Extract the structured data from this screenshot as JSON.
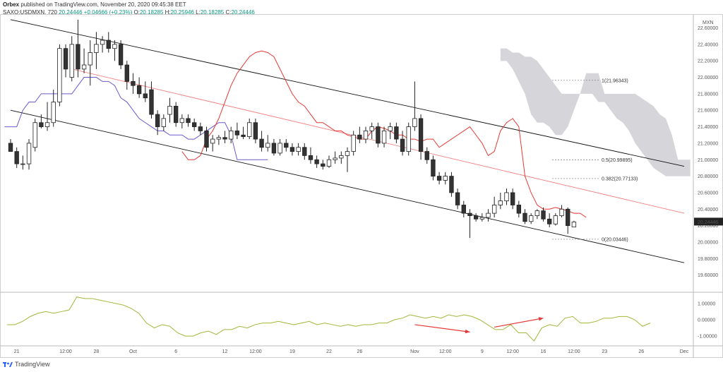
{
  "header": {
    "publisher_name": "Orbex",
    "published_text": "published on TradingView.com, November 20, 2020 09:45:38 EET",
    "symbol": "SAXO:USDMXN, 720",
    "last": "20.24446",
    "change": "+0.04666 (+0.23%)",
    "o_label": "O:",
    "o_value": "20.18285",
    "h_label": "H:",
    "h_value": "20.25946",
    "l_label": "L:",
    "l_value": "20.18285",
    "c_label": "C:",
    "c_value": "20.24446"
  },
  "footer": {
    "brand": "TradingView",
    "logo_icon": "tradingview-logo-icon"
  },
  "colors": {
    "up_fill": "#ffffff",
    "down_fill": "#333333",
    "candle_line": "#222222",
    "tenkan": "#e53935",
    "kijun": "#6a5acd",
    "cloud": "#cfcfd3",
    "oscillator": "#a5b53b",
    "arrow": "#e53935",
    "channel": "#111111",
    "midline": "#f08080"
  },
  "chart_data": {
    "type": "candlestick",
    "symbol": "SAXO:USDMXN",
    "interval": "720",
    "currency_badge": "MXN",
    "price_axis": {
      "ylim": [
        19.4,
        22.75
      ],
      "ticks": [
        "22.60000",
        "22.40000",
        "22.20000",
        "22.00000",
        "21.80000",
        "21.60000",
        "21.40000",
        "21.20000",
        "21.00000",
        "20.80000",
        "20.60000",
        "20.40000",
        "20.20000",
        "20.00000",
        "19.80000",
        "19.60000"
      ],
      "tick_values": [
        22.6,
        22.4,
        22.2,
        22.0,
        21.8,
        21.6,
        21.4,
        21.2,
        21.0,
        20.8,
        20.6,
        20.4,
        20.2,
        20.0,
        19.8,
        19.6
      ],
      "last_price_label": "20.24446",
      "last_price": 20.24446
    },
    "x_axis": {
      "labels": [
        "21",
        "12:00",
        "28",
        "Oct",
        "6",
        "12",
        "12:00",
        "19",
        "22",
        "26",
        "Nov",
        "12:00",
        "9",
        "12:00",
        "16",
        "12:00",
        "23",
        "26",
        "Dec"
      ],
      "label_bars": [
        2,
        10,
        15,
        21,
        28,
        36,
        41,
        47,
        53,
        58,
        67,
        72,
        78,
        83,
        88,
        93,
        98,
        104,
        111
      ],
      "bar_count": 113
    },
    "candles": [
      [
        21.2,
        21.25,
        21.1,
        21.1
      ],
      [
        21.1,
        21.15,
        20.9,
        20.95
      ],
      [
        20.95,
        21.05,
        20.88,
        20.95
      ],
      [
        20.95,
        21.25,
        20.88,
        21.2
      ],
      [
        21.15,
        21.5,
        21.1,
        21.45
      ],
      [
        21.45,
        21.55,
        21.38,
        21.4
      ],
      [
        21.4,
        21.7,
        21.35,
        21.45
      ],
      [
        21.45,
        21.85,
        21.4,
        21.7
      ],
      [
        21.7,
        22.4,
        21.65,
        22.35
      ],
      [
        22.35,
        22.4,
        22.0,
        22.1
      ],
      [
        22.0,
        22.5,
        21.95,
        22.4
      ],
      [
        22.4,
        22.7,
        22.0,
        22.1
      ],
      [
        22.1,
        22.35,
        22.05,
        22.15
      ],
      [
        22.15,
        22.45,
        21.9,
        22.3
      ],
      [
        22.3,
        22.55,
        22.1,
        22.4
      ],
      [
        22.4,
        22.5,
        22.3,
        22.45
      ],
      [
        22.45,
        22.55,
        22.3,
        22.35
      ],
      [
        22.35,
        22.45,
        22.2,
        22.4
      ],
      [
        22.4,
        22.45,
        22.1,
        22.15
      ],
      [
        22.15,
        22.2,
        21.85,
        21.95
      ],
      [
        21.95,
        22.05,
        21.8,
        21.9
      ],
      [
        21.9,
        22.0,
        21.75,
        21.8
      ],
      [
        21.8,
        21.95,
        21.7,
        21.75
      ],
      [
        21.85,
        21.95,
        21.5,
        21.55
      ],
      [
        21.55,
        21.6,
        21.3,
        21.4
      ],
      [
        21.4,
        21.55,
        21.35,
        21.5
      ],
      [
        21.55,
        21.75,
        21.45,
        21.65
      ],
      [
        21.65,
        21.7,
        21.4,
        21.45
      ],
      [
        21.45,
        21.55,
        21.38,
        21.5
      ],
      [
        21.5,
        21.55,
        21.4,
        21.45
      ],
      [
        21.45,
        21.5,
        21.35,
        21.4
      ],
      [
        21.4,
        21.45,
        21.3,
        21.35
      ],
      [
        21.35,
        21.4,
        21.1,
        21.15
      ],
      [
        21.2,
        21.3,
        21.1,
        21.25
      ],
      [
        21.25,
        21.3,
        21.18,
        21.27
      ],
      [
        21.27,
        21.35,
        21.2,
        21.25
      ],
      [
        21.25,
        21.4,
        21.2,
        21.35
      ],
      [
        21.35,
        21.45,
        21.25,
        21.3
      ],
      [
        21.3,
        21.4,
        21.25,
        21.28
      ],
      [
        21.28,
        21.5,
        21.25,
        21.45
      ],
      [
        21.45,
        21.5,
        21.2,
        21.25
      ],
      [
        21.25,
        21.35,
        21.1,
        21.15
      ],
      [
        21.15,
        21.3,
        21.1,
        21.2
      ],
      [
        21.2,
        21.25,
        21.05,
        21.08
      ],
      [
        21.08,
        21.25,
        21.05,
        21.2
      ],
      [
        21.2,
        21.25,
        21.1,
        21.15
      ],
      [
        21.15,
        21.2,
        21.05,
        21.1
      ],
      [
        21.1,
        21.2,
        21.05,
        21.15
      ],
      [
        21.15,
        21.2,
        21.0,
        21.05
      ],
      [
        21.05,
        21.15,
        20.95,
        21.0
      ],
      [
        21.0,
        21.05,
        20.9,
        20.95
      ],
      [
        20.95,
        21.0,
        20.88,
        20.92
      ],
      [
        20.92,
        21.05,
        20.9,
        21.0
      ],
      [
        21.0,
        21.1,
        20.95,
        21.02
      ],
      [
        21.02,
        21.1,
        20.95,
        21.05
      ],
      [
        21.05,
        21.15,
        20.85,
        21.1
      ],
      [
        21.1,
        21.35,
        21.05,
        21.3
      ],
      [
        21.3,
        21.4,
        21.2,
        21.25
      ],
      [
        21.25,
        21.4,
        21.2,
        21.35
      ],
      [
        21.35,
        21.45,
        21.25,
        21.4
      ],
      [
        21.4,
        21.45,
        21.15,
        21.2
      ],
      [
        21.2,
        21.4,
        21.15,
        21.35
      ],
      [
        21.35,
        21.45,
        21.25,
        21.4
      ],
      [
        21.4,
        21.45,
        21.2,
        21.25
      ],
      [
        21.25,
        21.35,
        21.05,
        21.1
      ],
      [
        21.1,
        21.45,
        21.05,
        21.4
      ],
      [
        21.4,
        21.95,
        21.35,
        21.5
      ],
      [
        21.5,
        21.55,
        21.0,
        21.1
      ],
      [
        21.1,
        21.15,
        20.95,
        21.0
      ],
      [
        21.0,
        21.05,
        20.75,
        20.8
      ],
      [
        20.8,
        20.85,
        20.7,
        20.75
      ],
      [
        20.75,
        20.85,
        20.7,
        20.8
      ],
      [
        20.8,
        20.85,
        20.55,
        20.6
      ],
      [
        20.6,
        20.65,
        20.4,
        20.45
      ],
      [
        20.45,
        20.5,
        20.3,
        20.35
      ],
      [
        20.35,
        20.4,
        20.05,
        20.32
      ],
      [
        20.32,
        20.35,
        20.25,
        20.28
      ],
      [
        20.28,
        20.35,
        20.25,
        20.3
      ],
      [
        20.3,
        20.4,
        20.25,
        20.35
      ],
      [
        20.35,
        20.55,
        20.3,
        20.45
      ],
      [
        20.45,
        20.6,
        20.4,
        20.5
      ],
      [
        20.5,
        20.65,
        20.45,
        20.6
      ],
      [
        20.6,
        20.65,
        20.4,
        20.45
      ],
      [
        20.45,
        20.5,
        20.3,
        20.35
      ],
      [
        20.35,
        20.4,
        20.22,
        20.25
      ],
      [
        20.25,
        20.35,
        20.22,
        20.32
      ],
      [
        20.32,
        20.4,
        20.28,
        20.38
      ],
      [
        20.38,
        20.42,
        20.25,
        20.28
      ],
      [
        20.28,
        20.35,
        20.18,
        20.22
      ],
      [
        20.22,
        20.35,
        20.2,
        20.32
      ],
      [
        20.32,
        20.45,
        20.3,
        20.4
      ],
      [
        20.4,
        20.42,
        20.1,
        20.2
      ],
      [
        20.18285,
        20.25946,
        20.18285,
        20.24446
      ]
    ],
    "tenkan": [
      21.1,
      21.0,
      21.0,
      21.05,
      21.25,
      21.35,
      21.5,
      21.7,
      21.9,
      22.05,
      22.15,
      22.25,
      22.3,
      22.32,
      22.3,
      22.25,
      22.1,
      21.95,
      21.8,
      21.7,
      21.65,
      21.55,
      21.45,
      21.45,
      21.4,
      21.35,
      21.35,
      21.3,
      21.28,
      21.25,
      21.25,
      21.35,
      21.4,
      21.38,
      21.35,
      21.3,
      21.3,
      21.25,
      21.25,
      21.22,
      21.25,
      21.25,
      21.15,
      21.2,
      21.25,
      21.3,
      21.35,
      21.4,
      21.3,
      21.2,
      21.05,
      21.1,
      21.35,
      21.45,
      21.5,
      21.4,
      20.8,
      20.6,
      20.45,
      20.4,
      20.4,
      20.42,
      20.4,
      20.38,
      20.35,
      20.35,
      20.3
    ],
    "kijun": [
      21.4,
      21.4,
      21.4,
      21.6,
      21.7,
      21.7,
      21.8,
      21.8,
      21.8,
      21.8,
      21.8,
      21.8,
      21.9,
      22.0,
      22.0,
      22.0,
      21.95,
      21.95,
      21.9,
      21.75,
      21.7,
      21.6,
      21.5,
      21.45,
      21.4,
      21.35,
      21.35,
      21.3,
      21.3,
      21.3,
      21.25,
      21.25,
      21.3,
      21.35,
      21.4,
      21.45,
      21.45,
      21.3,
      21.0,
      21.0,
      21.0,
      21.0,
      21.0,
      21.0
    ],
    "cloud": {
      "label": "Ichimoku cloud",
      "upper": [
        22.35,
        22.35,
        22.3,
        22.3,
        22.25,
        22.25,
        22.2,
        22.1,
        22.0,
        21.9,
        21.8,
        21.8,
        21.8,
        21.8,
        22.05,
        22.05,
        22.05,
        21.8,
        21.8,
        21.8,
        21.8,
        21.8,
        21.8,
        21.75,
        21.7,
        21.65,
        21.55,
        21.5,
        21.3,
        21.0,
        21.0,
        21.0
      ],
      "lower": [
        22.2,
        22.2,
        22.1,
        21.95,
        21.8,
        21.55,
        21.45,
        21.45,
        21.4,
        21.3,
        21.3,
        21.4,
        21.6,
        21.8,
        21.8,
        21.8,
        21.7,
        21.7,
        21.6,
        21.5,
        21.45,
        21.35,
        21.2,
        21.1,
        21.0,
        20.9,
        20.85,
        20.8,
        20.8,
        20.8,
        20.8,
        20.8
      ]
    },
    "channel": {
      "upper": [
        [
          22.7,
          1
        ],
        [
          20.92,
          111
        ]
      ],
      "lower": [
        [
          21.6,
          1
        ],
        [
          19.75,
          111
        ]
      ],
      "midline": [
        [
          22.1,
          11
        ],
        [
          20.35,
          111
        ]
      ]
    },
    "fibonacci": [
      {
        "level": 1,
        "label": "1(21.96343)",
        "price": 21.96343
      },
      {
        "level": 0.5,
        "label": "0.5(20.99895)",
        "price": 20.99895
      },
      {
        "level": 0.382,
        "label": "0.382(20.77133)",
        "price": 20.77133
      },
      {
        "level": 0,
        "label": "0(20.03446)",
        "price": 20.03446
      }
    ],
    "oscillator": {
      "ylim": [
        -1.6,
        1.6
      ],
      "ticks": [
        "1.00000",
        "0.00000",
        "-1.00000"
      ],
      "tick_values": [
        1,
        0,
        -1
      ],
      "values": [
        -0.3,
        -0.3,
        -0.1,
        0.2,
        0.4,
        0.5,
        0.4,
        0.5,
        0.6,
        1.4,
        1.3,
        1.3,
        1.2,
        1.1,
        1.0,
        0.9,
        0.7,
        0.4,
        -0.2,
        -0.5,
        -0.3,
        -0.4,
        -0.8,
        -1.0,
        -1.0,
        -0.8,
        -0.7,
        -0.9,
        -0.6,
        -0.6,
        -0.4,
        -0.5,
        -0.3,
        -0.2,
        -0.2,
        -0.1,
        -0.2,
        -0.3,
        -0.2,
        -0.1,
        -0.3,
        -0.2,
        -0.3,
        -0.4,
        -0.3,
        -0.4,
        -0.3,
        -0.3,
        -0.2,
        -0.2,
        0.0,
        0.1,
        0.3,
        0.2,
        0.1,
        0.2,
        0.1,
        0.3,
        0.2,
        0.3,
        0.2,
        0.0,
        -0.3,
        -0.6,
        -0.6,
        -0.3,
        -0.8,
        -0.8,
        -1.3,
        -0.5,
        -0.3,
        -0.4,
        0.1,
        0.2,
        -0.2,
        -0.2,
        -0.1,
        0.1,
        0.1,
        0.2,
        0.2,
        0.0,
        -0.4,
        -0.2
      ],
      "arrows": [
        [
          [
            67,
            -0.3
          ],
          [
            76,
            -0.75
          ]
        ],
        [
          [
            80,
            -0.45
          ],
          [
            88,
            0.1
          ]
        ]
      ]
    }
  }
}
